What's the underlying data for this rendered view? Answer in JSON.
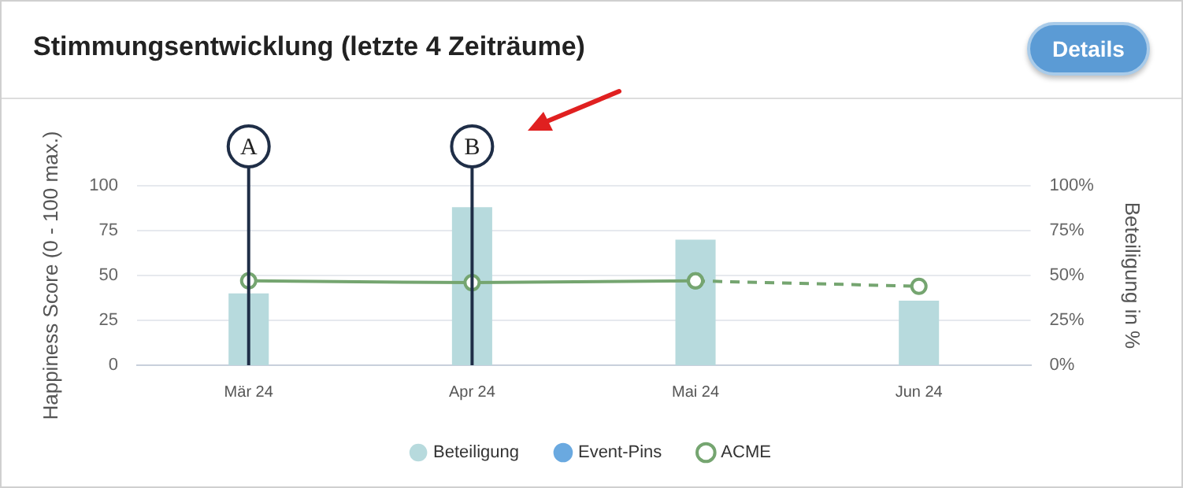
{
  "chart_data": {
    "type": "bar",
    "title": "Stimmungsentwicklung (letzte 4 Zeiträume)",
    "ylabel": "Happiness Score (0 - 100 max.)",
    "y2label": "Beteiligung in %",
    "categories": [
      "Mär 24",
      "Apr 24",
      "Mai 24",
      "Jun 24"
    ],
    "series": [
      {
        "name": "Beteiligung",
        "axis": "y2",
        "color": "#b7dadd",
        "values": [
          40,
          88,
          70,
          36
        ]
      },
      {
        "name": "Event-Pins",
        "type": "scatter",
        "color": "#6aa9e0",
        "values": [
          null,
          null,
          null,
          null
        ]
      },
      {
        "name": "ACME",
        "type": "line",
        "color": "#75a570",
        "marker": "circle",
        "line_style": "solid",
        "values": [
          47,
          46,
          47,
          null
        ]
      },
      {
        "type": "line",
        "color": "#75a570",
        "marker": "circle",
        "line_style": "dashed",
        "values": [
          null,
          null,
          47,
          44
        ]
      }
    ],
    "ylim": [
      0,
      100
    ],
    "yticks": [
      0,
      25,
      50,
      75,
      100
    ],
    "y2lim": [
      0,
      100
    ],
    "y2ticks": [
      {
        "value": 0,
        "label": "0%"
      },
      {
        "value": 25,
        "label": "25%"
      },
      {
        "value": 50,
        "label": "50%"
      },
      {
        "value": 75,
        "label": "75%"
      },
      {
        "value": 100,
        "label": "100%"
      }
    ],
    "ref_lines": [
      {
        "axis": "x",
        "value": "Mär 24",
        "label": "A",
        "color": "#1f2e47"
      },
      {
        "axis": "x",
        "value": "Apr 24",
        "label": "B",
        "color": "#1f2e47"
      }
    ],
    "annotations": [
      "Details"
    ],
    "grid": "y",
    "legend": "bottom"
  }
}
